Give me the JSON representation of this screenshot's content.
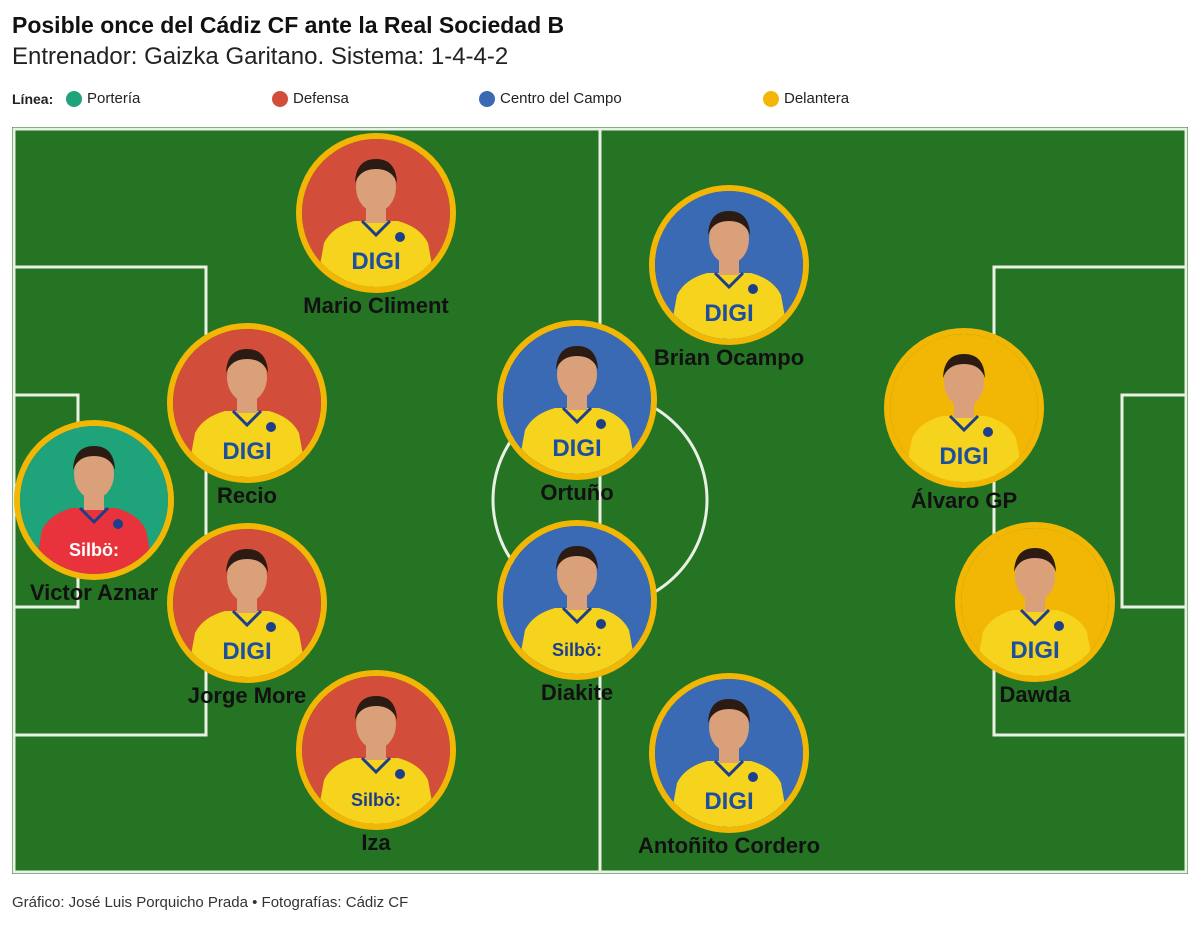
{
  "header": {
    "title": "Posible once del Cádiz CF ante la Real Sociedad B",
    "subtitle": "Entrenador: Gaizka Garitano. Sistema: 1-4-4-2"
  },
  "legend": {
    "title": "Línea:",
    "items": [
      {
        "label": "Portería",
        "color": "#1fa37a"
      },
      {
        "label": "Defensa",
        "color": "#d24e3a"
      },
      {
        "label": "Centro del Campo",
        "color": "#3a6ab4"
      },
      {
        "label": "Delantera",
        "color": "#f2b705"
      }
    ]
  },
  "colors": {
    "pitch": "#257424",
    "lines": "#e9f0e4",
    "border": "#f2b705",
    "shirt_yellow": "#f6d31c",
    "shirt_red": "#e8323c",
    "skin": "#d9a07a",
    "hair": "#2b1b12"
  },
  "players": [
    {
      "name": "Mario Climent",
      "line": "Defensa",
      "sponsor": "DIGI"
    },
    {
      "name": "Recio",
      "line": "Defensa",
      "sponsor": "DIGI"
    },
    {
      "name": "Victor Aznar",
      "line": "Portería",
      "sponsor": "Silbö:"
    },
    {
      "name": "Jorge More",
      "line": "Defensa",
      "sponsor": "DIGI"
    },
    {
      "name": "Iza",
      "line": "Defensa",
      "sponsor": "Silbö:"
    },
    {
      "name": "Brian Ocampo",
      "line": "Centro del Campo",
      "sponsor": "DIGI"
    },
    {
      "name": "Ortuño",
      "line": "Centro del Campo",
      "sponsor": "DIGI"
    },
    {
      "name": "Diakite",
      "line": "Centro del Campo",
      "sponsor": "Silbö:"
    },
    {
      "name": "Antoñito Cordero",
      "line": "Centro del Campo",
      "sponsor": "DIGI"
    },
    {
      "name": "Álvaro GP",
      "line": "Delantera",
      "sponsor": "DIGI"
    },
    {
      "name": "Dawda",
      "line": "Delantera",
      "sponsor": "DIGI"
    }
  ],
  "footer": {
    "credit": "Gráfico: José Luis Porquicho Prada • Fotografías: Cádiz CF"
  }
}
